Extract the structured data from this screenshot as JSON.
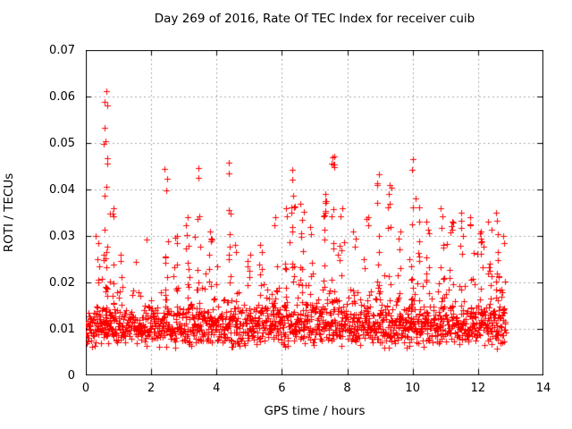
{
  "title": "Day 269 of 2016, Rate Of TEC Index for receiver cuib",
  "chart_data": {
    "type": "scatter",
    "title": "Day 269 of 2016, Rate Of TEC Index for receiver cuib",
    "xlabel": "GPS time / hours",
    "ylabel": "ROTI / TECUs",
    "xlim": [
      0,
      14
    ],
    "ylim": [
      0,
      0.07
    ],
    "xticks": [
      0,
      2,
      4,
      6,
      8,
      10,
      12,
      14
    ],
    "yticks": [
      0,
      0.01,
      0.02,
      0.03,
      0.04,
      0.05,
      0.06,
      0.07
    ],
    "xtick_labels": [
      "0",
      "2",
      "4",
      "6",
      "8",
      "10",
      "12",
      "14"
    ],
    "ytick_labels": [
      "0",
      "0.01",
      "0.02",
      "0.03",
      "0.04",
      "0.05",
      "0.06",
      "0.07"
    ],
    "grid": true,
    "grid_style": "dashed",
    "legend": "none",
    "marker": "plus",
    "marker_color": "#ff0000",
    "grid_color": "#a8a8a8",
    "axis_color": "#000000",
    "background_color": "#ffffff",
    "x_data_range": [
      0,
      12.85
    ],
    "dense_band_range": [
      0.005,
      0.022
    ],
    "max_value": 0.0612,
    "max_value_at_hour": 0.6,
    "generator": {
      "seed": 269,
      "points_per_hour": 120,
      "x_max": 12.85,
      "base_min": 0.0055,
      "base_spread": 0.005,
      "tail_prob": 0.16,
      "tail_scale": 0.0042,
      "base_cap": 0.032,
      "spike_base": 0.013,
      "spike_width": 0.12,
      "density_bumps": [
        {
          "from": 0.0,
          "to": 0.35,
          "factor": 1.3
        },
        {
          "from": 2.2,
          "to": 4.7,
          "factor": 1.4
        },
        {
          "from": 5.5,
          "to": 7.1,
          "factor": 2.1
        },
        {
          "from": 7.1,
          "to": 9.6,
          "factor": 1.7
        },
        {
          "from": 10.4,
          "to": 12.9,
          "factor": 2.2
        }
      ],
      "spikes": [
        {
          "hour": 0.35,
          "peak": 0.03,
          "count": 8
        },
        {
          "hour": 0.6,
          "peak": 0.0612,
          "count": 26
        },
        {
          "hour": 0.8,
          "peak": 0.036,
          "count": 10
        },
        {
          "hour": 1.05,
          "peak": 0.026,
          "count": 6
        },
        {
          "hour": 2.45,
          "peak": 0.0445,
          "count": 14
        },
        {
          "hour": 2.75,
          "peak": 0.03,
          "count": 8
        },
        {
          "hour": 3.1,
          "peak": 0.034,
          "count": 10
        },
        {
          "hour": 3.45,
          "peak": 0.0447,
          "count": 12
        },
        {
          "hour": 3.8,
          "peak": 0.031,
          "count": 8
        },
        {
          "hour": 4.4,
          "peak": 0.0458,
          "count": 12
        },
        {
          "hour": 4.6,
          "peak": 0.028,
          "count": 6
        },
        {
          "hour": 5.0,
          "peak": 0.026,
          "count": 6
        },
        {
          "hour": 5.35,
          "peak": 0.028,
          "count": 6
        },
        {
          "hour": 5.8,
          "peak": 0.034,
          "count": 10
        },
        {
          "hour": 6.1,
          "peak": 0.036,
          "count": 10
        },
        {
          "hour": 6.35,
          "peak": 0.0443,
          "count": 14
        },
        {
          "hour": 6.6,
          "peak": 0.037,
          "count": 10
        },
        {
          "hour": 6.9,
          "peak": 0.032,
          "count": 8
        },
        {
          "hour": 7.3,
          "peak": 0.039,
          "count": 12
        },
        {
          "hour": 7.55,
          "peak": 0.0471,
          "count": 14
        },
        {
          "hour": 7.8,
          "peak": 0.036,
          "count": 8
        },
        {
          "hour": 8.2,
          "peak": 0.031,
          "count": 8
        },
        {
          "hour": 8.6,
          "peak": 0.034,
          "count": 8
        },
        {
          "hour": 8.95,
          "peak": 0.0432,
          "count": 12
        },
        {
          "hour": 9.3,
          "peak": 0.041,
          "count": 10
        },
        {
          "hour": 9.6,
          "peak": 0.031,
          "count": 6
        },
        {
          "hour": 9.95,
          "peak": 0.0465,
          "count": 14
        },
        {
          "hour": 10.15,
          "peak": 0.038,
          "count": 8
        },
        {
          "hour": 10.45,
          "peak": 0.033,
          "count": 8
        },
        {
          "hour": 10.9,
          "peak": 0.036,
          "count": 10
        },
        {
          "hour": 11.2,
          "peak": 0.033,
          "count": 8
        },
        {
          "hour": 11.5,
          "peak": 0.035,
          "count": 10
        },
        {
          "hour": 11.8,
          "peak": 0.034,
          "count": 8
        },
        {
          "hour": 12.1,
          "peak": 0.031,
          "count": 8
        },
        {
          "hour": 12.35,
          "peak": 0.033,
          "count": 10
        },
        {
          "hour": 12.6,
          "peak": 0.035,
          "count": 12
        },
        {
          "hour": 12.8,
          "peak": 0.03,
          "count": 8
        }
      ]
    }
  }
}
